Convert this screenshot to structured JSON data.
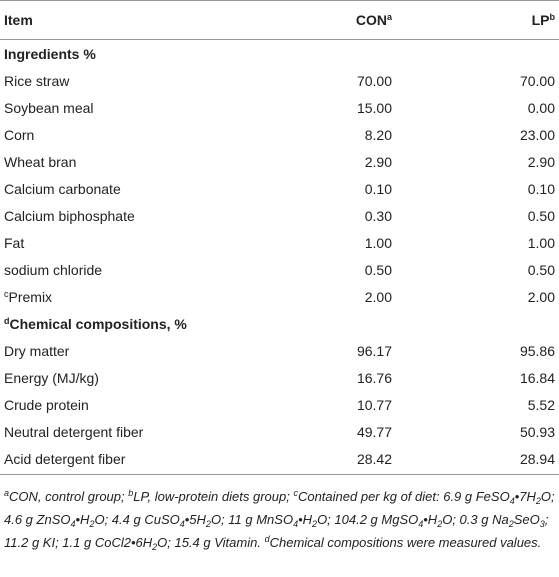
{
  "table": {
    "header": {
      "item": "Item",
      "con": "CON",
      "con_sup": "a",
      "lp": "LP",
      "lp_sup": "b"
    },
    "sections": [
      {
        "title": "Ingredients %",
        "rows": [
          {
            "item": "Rice straw",
            "con": "70.00",
            "lp": "70.00"
          },
          {
            "item": "Soybean meal",
            "con": "15.00",
            "lp": "0.00"
          },
          {
            "item": "Corn",
            "con": "8.20",
            "lp": "23.00"
          },
          {
            "item": "Wheat bran",
            "con": "2.90",
            "lp": "2.90"
          },
          {
            "item": "Calcium carbonate",
            "con": "0.10",
            "lp": "0.10"
          },
          {
            "item": "Calcium biphosphate",
            "con": "0.30",
            "lp": "0.50"
          },
          {
            "item": "Fat",
            "con": "1.00",
            "lp": "1.00"
          },
          {
            "item": "sodium chloride",
            "con": "0.50",
            "lp": "0.50"
          },
          {
            "sup": "c",
            "item": "Premix",
            "con": "2.00",
            "lp": "2.00"
          }
        ]
      },
      {
        "sup": "d",
        "title": "Chemical compositions, %",
        "rows": [
          {
            "item": "Dry matter",
            "con": "96.17",
            "lp": "95.86"
          },
          {
            "item": "Energy (MJ/kg)",
            "con": "16.76",
            "lp": "16.84"
          },
          {
            "item": "Crude protein",
            "con": "10.77",
            "lp": "5.52"
          },
          {
            "item": "Neutral detergent fiber",
            "con": "49.77",
            "lp": "50.93"
          },
          {
            "item": "Acid detergent fiber",
            "con": "28.42",
            "lp": "28.94"
          }
        ]
      }
    ],
    "footnote": [
      {
        "style": "sup",
        "text": "a"
      },
      {
        "text": "CON, control group; "
      },
      {
        "style": "sup",
        "text": "b"
      },
      {
        "text": "LP, low-protein diets group; "
      },
      {
        "style": "sup",
        "text": "c"
      },
      {
        "text": "Contained per kg of diet: 6.9 g FeSO"
      },
      {
        "style": "sub",
        "text": "4"
      },
      {
        "text": "•7H"
      },
      {
        "style": "sub",
        "text": "2"
      },
      {
        "text": "O; 4.6 g ZnSO"
      },
      {
        "style": "sub",
        "text": "4"
      },
      {
        "text": "•H"
      },
      {
        "style": "sub",
        "text": "2"
      },
      {
        "text": "O; 4.4 g CuSO"
      },
      {
        "style": "sub",
        "text": "4"
      },
      {
        "text": "•5H"
      },
      {
        "style": "sub",
        "text": "2"
      },
      {
        "text": "O; 11 g MnSO"
      },
      {
        "style": "sub",
        "text": "4"
      },
      {
        "text": "•H"
      },
      {
        "style": "sub",
        "text": "2"
      },
      {
        "text": "O; 104.2 g MgSO"
      },
      {
        "style": "sub",
        "text": "4"
      },
      {
        "text": "•H"
      },
      {
        "style": "sub",
        "text": "2"
      },
      {
        "text": "O; 0.3 g Na"
      },
      {
        "style": "sub",
        "text": "2"
      },
      {
        "text": "SeO"
      },
      {
        "style": "sub",
        "text": "3"
      },
      {
        "text": "; 11.2 g KI; 1.1 g CoCl2•6H"
      },
      {
        "style": "sub",
        "text": "2"
      },
      {
        "text": "O; 15.4 g Vitamin. "
      },
      {
        "style": "sup",
        "text": "d"
      },
      {
        "text": "Chemical compositions were measured values."
      }
    ]
  }
}
